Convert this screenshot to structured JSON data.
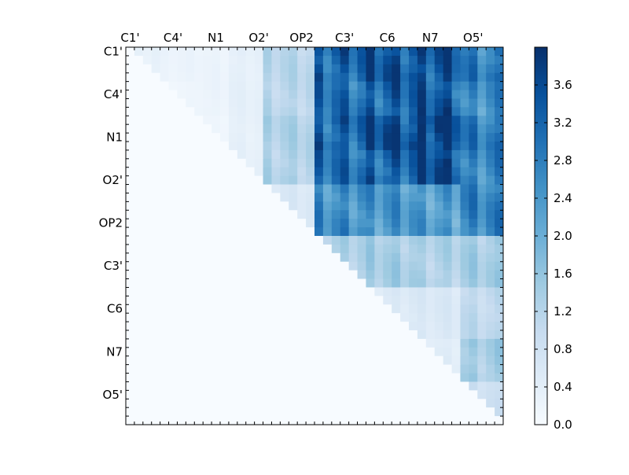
{
  "chart_data": {
    "type": "heatmap",
    "title": "",
    "xlabel": "",
    "ylabel": "",
    "grid_size": 44,
    "colormap": "Blues",
    "colors": {
      "low": "#f7fbff",
      "high": "#08306b",
      "axis": "#000000"
    },
    "x_tick_labels": [
      "C1'",
      "C4'",
      "N1",
      "O2'",
      "OP2",
      "C3'",
      "C6",
      "N7",
      "O5'"
    ],
    "y_tick_labels": [
      "C1'",
      "C4'",
      "N1",
      "O2'",
      "OP2",
      "C3'",
      "C6",
      "N7",
      "O5'"
    ],
    "label_positions": [
      0.5,
      5.5,
      10.5,
      15.5,
      20.5,
      25.5,
      30.5,
      35.5,
      40.5
    ],
    "colorbar": {
      "range": [
        0,
        4.0
      ],
      "tick_values": [
        0.0,
        0.4,
        0.8,
        1.2,
        1.6,
        2.0,
        2.4,
        2.8,
        3.2,
        3.6
      ],
      "tick_labels": [
        "0.0",
        "0.4",
        "0.8",
        "1.2",
        "1.6",
        "2.0",
        "2.4",
        "2.8",
        "3.2",
        "3.6"
      ]
    },
    "block_bounds": [
      0,
      4,
      8,
      12,
      16,
      22,
      28,
      34,
      39,
      44
    ],
    "block_values": [
      [
        0.3,
        0.2,
        0.2,
        0.3,
        1.0,
        2.8,
        3.0,
        3.0,
        2.4
      ],
      [
        0.0,
        0.15,
        0.2,
        0.3,
        1.0,
        2.6,
        2.8,
        2.9,
        2.2
      ],
      [
        0.0,
        0.0,
        0.15,
        0.3,
        1.1,
        2.8,
        3.1,
        3.3,
        2.4
      ],
      [
        0.0,
        0.0,
        0.0,
        0.3,
        1.1,
        2.6,
        2.8,
        3.1,
        2.3
      ],
      [
        0.0,
        0.0,
        0.0,
        0.0,
        0.5,
        2.2,
        2.1,
        2.0,
        2.3
      ],
      [
        0.0,
        0.0,
        0.0,
        0.0,
        0.0,
        1.1,
        1.2,
        1.1,
        1.2
      ],
      [
        0.0,
        0.0,
        0.0,
        0.0,
        0.0,
        0.15,
        0.5,
        0.5,
        0.9
      ],
      [
        0.0,
        0.0,
        0.0,
        0.0,
        0.0,
        0.0,
        0.15,
        0.4,
        1.2
      ],
      [
        0.0,
        0.0,
        0.0,
        0.0,
        0.0,
        0.0,
        0.0,
        0.0,
        0.7
      ]
    ]
  }
}
